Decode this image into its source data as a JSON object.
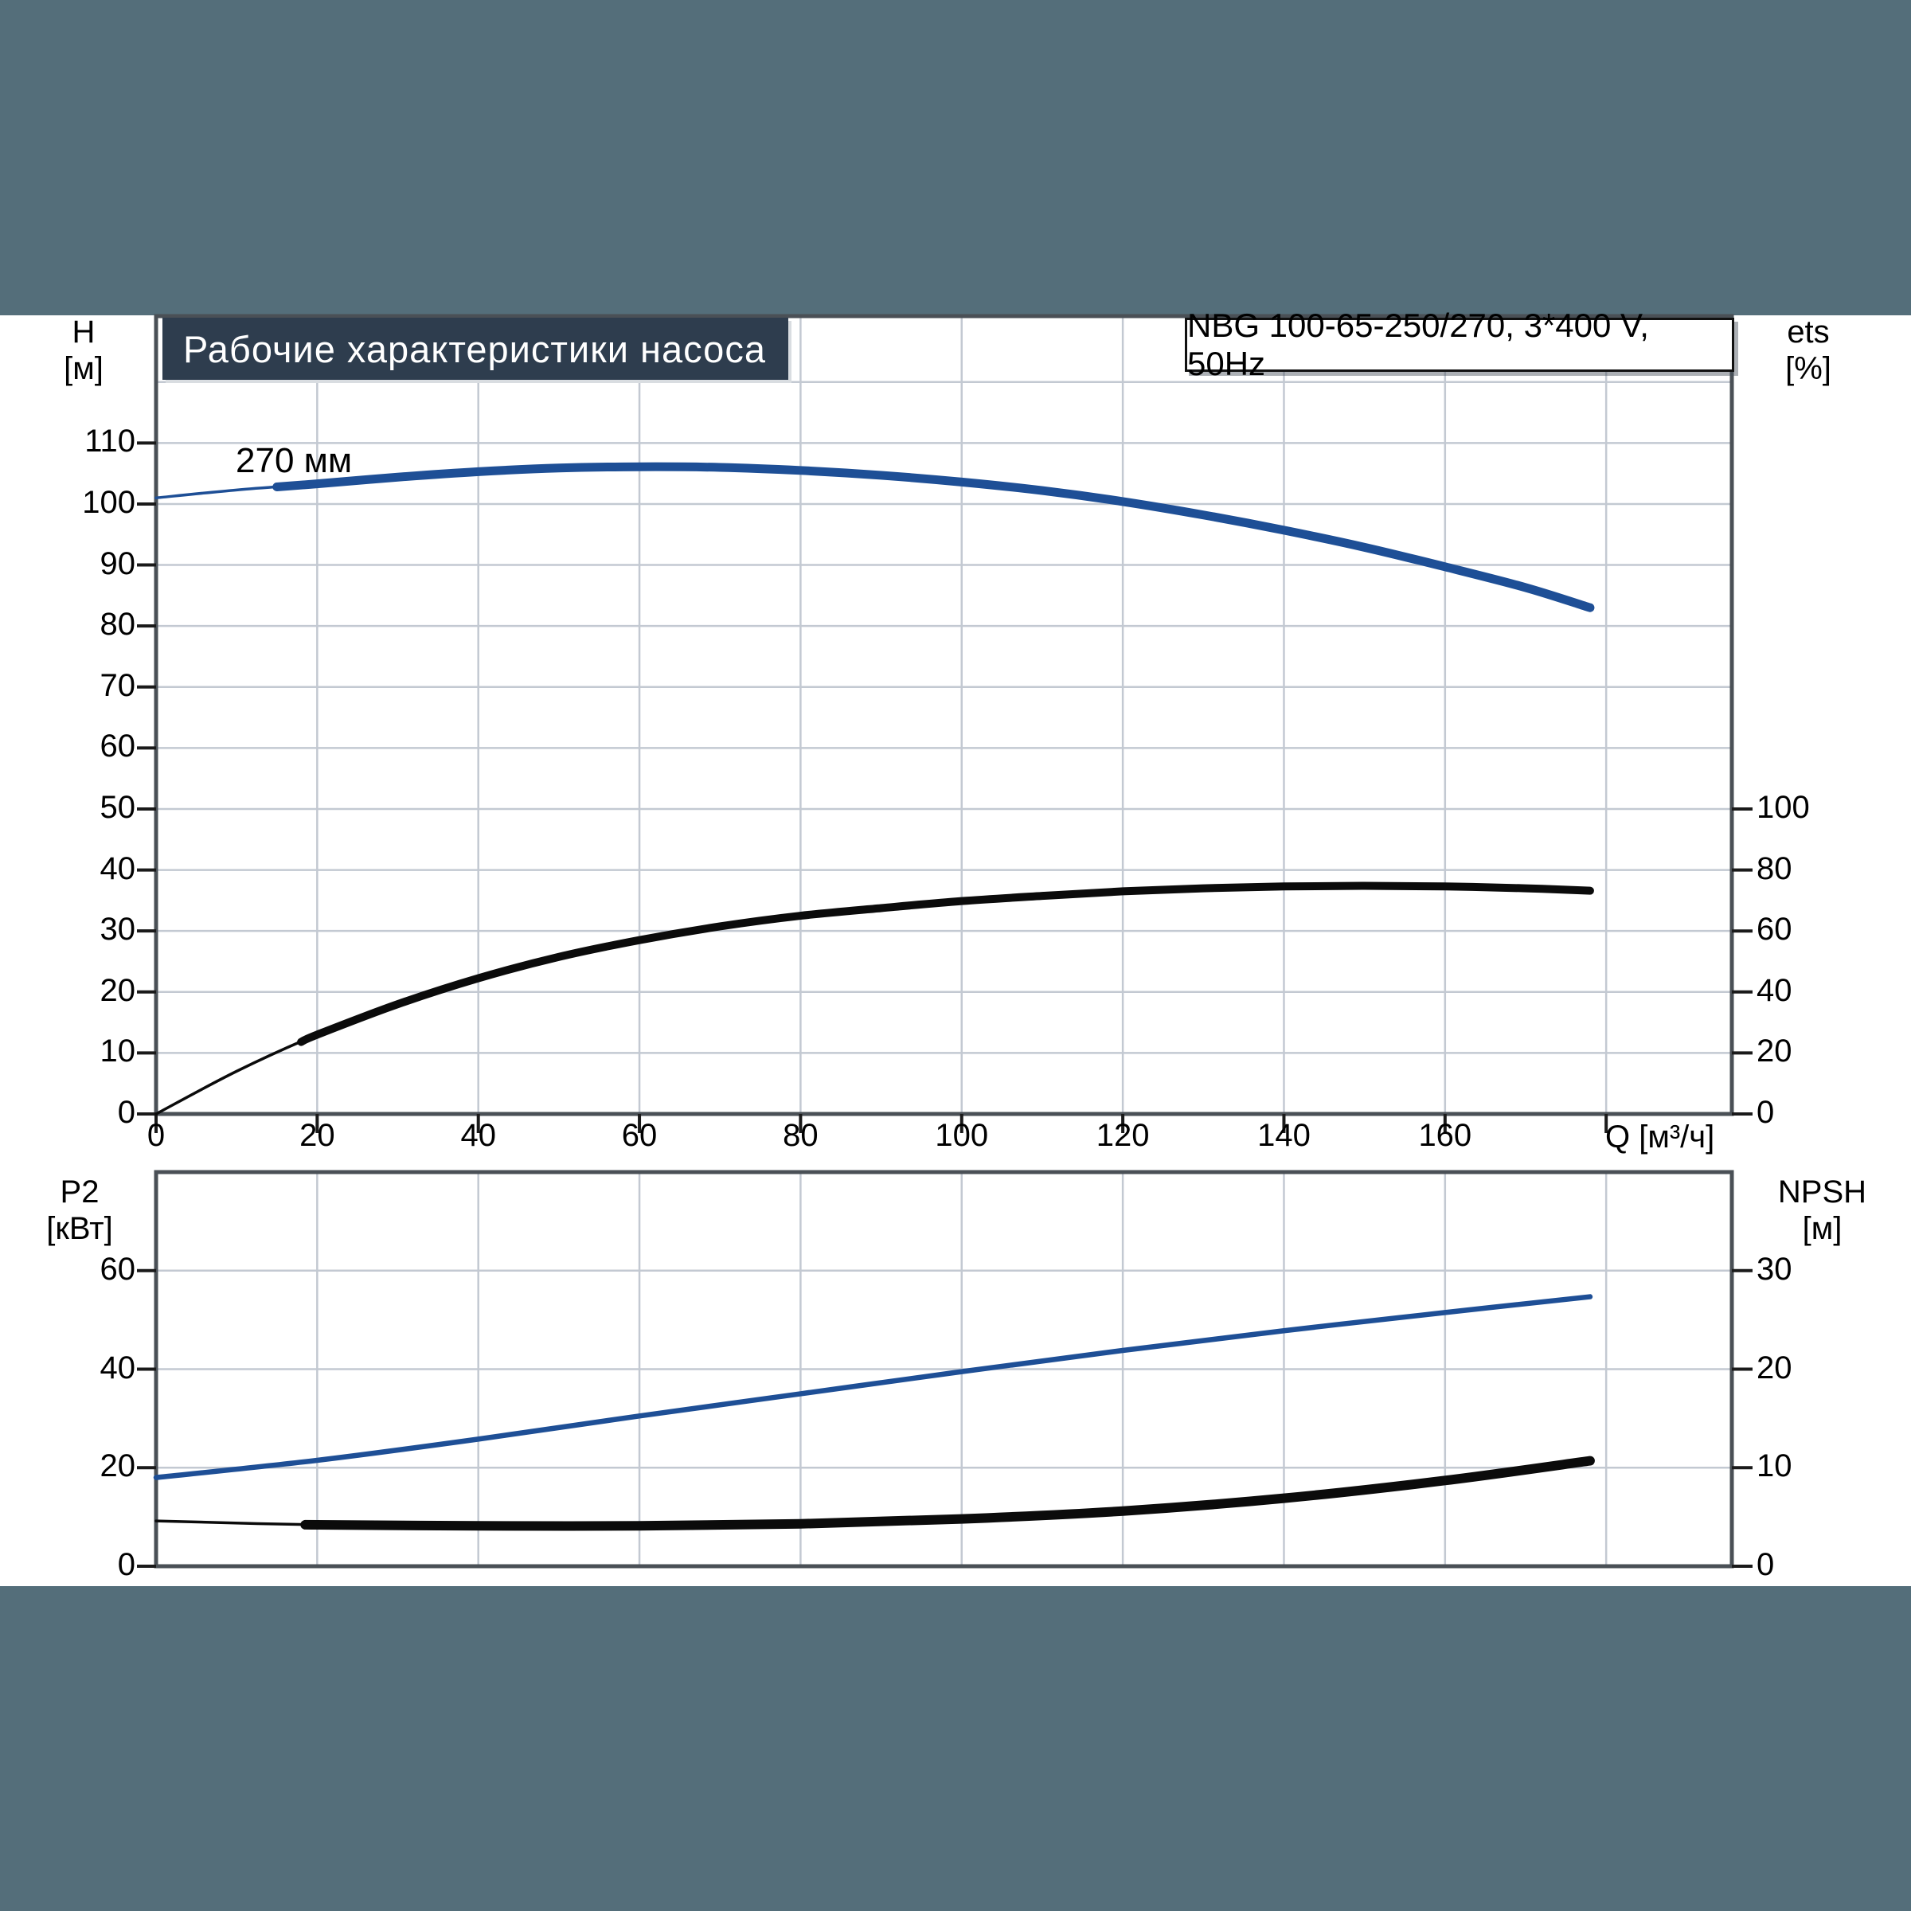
{
  "header": {
    "title": "Рабочие характеристики насоса",
    "model": "NBG 100-65-250/270, 3*400 V, 50Hz"
  },
  "colors": {
    "band": "#546e7a",
    "title_box_bg": "#2e3d4e",
    "title_box_text": "#ffffff",
    "curve_blue": "#1e4f96",
    "curve_black": "#0b0b0b",
    "grid": "#c3c9d2",
    "border": "#4a5056",
    "tick": "#1a1a1a"
  },
  "top_chart": {
    "left_axis_title": "H",
    "left_axis_unit": "[м]",
    "right_axis_title": "ets",
    "right_axis_unit": "[%]",
    "x_axis_title": "Q [м³/ч]",
    "curve_label": "270 мм",
    "left_ticks": [
      0,
      10,
      20,
      30,
      40,
      50,
      60,
      70,
      80,
      90,
      100,
      110
    ],
    "right_ticks": [
      0,
      20,
      40,
      60,
      80,
      100
    ],
    "x_ticks": [
      0,
      20,
      40,
      60,
      80,
      100,
      120,
      140,
      160
    ],
    "x_tick_marks": [
      0,
      20,
      40,
      60,
      80,
      100,
      120,
      140,
      160,
      180
    ]
  },
  "bottom_chart": {
    "left_axis_title": "P2",
    "left_axis_unit": "[кВт]",
    "right_axis_title": "NPSH",
    "right_axis_unit": "[м]",
    "left_ticks": [
      0,
      20,
      40,
      60
    ],
    "right_ticks": [
      0,
      10,
      20,
      30
    ]
  },
  "chart_data": [
    {
      "type": "line",
      "title": "Pump head and efficiency vs flow",
      "xlabel": "Q [м³/ч]",
      "x_range": [
        0,
        195.6
      ],
      "left_axis": {
        "label": "H [м]",
        "range": [
          0,
          130.8
        ],
        "ticks_step": 10
      },
      "right_axis": {
        "label": "ets [%]",
        "range": [
          0,
          100
        ],
        "note": "0 aligns with H=0, 100 aligns with H=50"
      },
      "grid": "on",
      "series": [
        {
          "name": "H 270 мм",
          "axis": "left",
          "color": "#1e4f96",
          "x": [
            0,
            10,
            20,
            30,
            40,
            50,
            60,
            70,
            80,
            90,
            100,
            110,
            120,
            130,
            140,
            150,
            160,
            170,
            178
          ],
          "values": [
            101,
            102.3,
            103.3,
            104.4,
            105.3,
            105.9,
            106.1,
            106.0,
            105.5,
            104.7,
            103.6,
            102.2,
            100.4,
            98.2,
            95.7,
            92.9,
            89.7,
            86.3,
            83
          ]
        },
        {
          "name": "ets",
          "axis": "right",
          "color": "#0b0b0b",
          "x": [
            0,
            10,
            20,
            30,
            40,
            50,
            60,
            70,
            80,
            90,
            100,
            110,
            120,
            130,
            140,
            150,
            160,
            170,
            178
          ],
          "values": [
            0,
            14,
            26,
            36,
            44.5,
            51.5,
            57,
            61.5,
            65,
            67.5,
            69.8,
            71.5,
            73,
            74,
            74.6,
            74.8,
            74.6,
            74,
            73.2
          ]
        }
      ]
    },
    {
      "type": "line",
      "title": "Power and NPSH vs flow",
      "xlabel": "Q [м³/ч]",
      "x_range": [
        0,
        195.6
      ],
      "left_axis": {
        "label": "P2 [кВт]",
        "range": [
          0,
          80
        ],
        "ticks_step": 20
      },
      "right_axis": {
        "label": "NPSH [м]",
        "range": [
          0,
          40
        ],
        "ticks_step": 10
      },
      "grid": "on",
      "series": [
        {
          "name": "P2",
          "axis": "left",
          "color": "#1e4f96",
          "x": [
            0,
            20,
            40,
            60,
            80,
            100,
            120,
            140,
            160,
            178
          ],
          "values": [
            18,
            21.5,
            25.8,
            30.5,
            35,
            39.5,
            43.8,
            47.8,
            51.5,
            54.7
          ]
        },
        {
          "name": "NPSH",
          "axis": "right",
          "color": "#0b0b0b",
          "x": [
            0,
            20,
            40,
            60,
            80,
            100,
            120,
            140,
            160,
            178
          ],
          "values": [
            4.6,
            4.2,
            4.1,
            4.1,
            4.3,
            4.8,
            5.6,
            6.9,
            8.7,
            10.7
          ]
        }
      ]
    }
  ]
}
